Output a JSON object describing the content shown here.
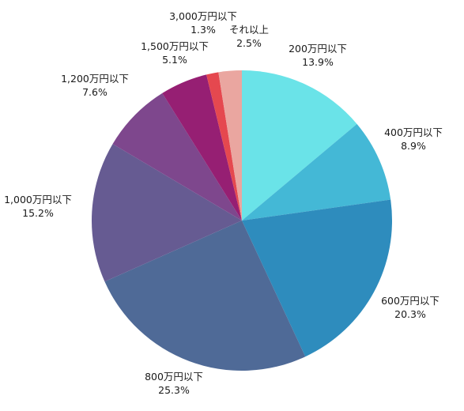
{
  "chart_data": {
    "type": "pie",
    "start_angle_deg": 0,
    "direction": "clockwise",
    "slices": [
      {
        "label": "200万円以下",
        "value": 13.9,
        "value_text": "13.9%",
        "color": "#6ae3e8"
      },
      {
        "label": "400万円以下",
        "value": 8.9,
        "value_text": "8.9%",
        "color": "#44b8d6"
      },
      {
        "label": "600万円以下",
        "value": 20.3,
        "value_text": "20.3%",
        "color": "#2e8cbd"
      },
      {
        "label": "800万円以下",
        "value": 25.3,
        "value_text": "25.3%",
        "color": "#4f6a97"
      },
      {
        "label": "1,000万円以下",
        "value": 15.2,
        "value_text": "15.2%",
        "color": "#665b92"
      },
      {
        "label": "1,200万円以下",
        "value": 7.6,
        "value_text": "7.6%",
        "color": "#7e478d"
      },
      {
        "label": "1,500万円以下",
        "value": 5.1,
        "value_text": "5.1%",
        "color": "#961f73"
      },
      {
        "label": "3,000万円以下",
        "value": 1.3,
        "value_text": "1.3%",
        "color": "#e5484f"
      },
      {
        "label": "それ以上",
        "value": 2.5,
        "value_text": "2.5%",
        "color": "#eaa6a0"
      }
    ]
  }
}
